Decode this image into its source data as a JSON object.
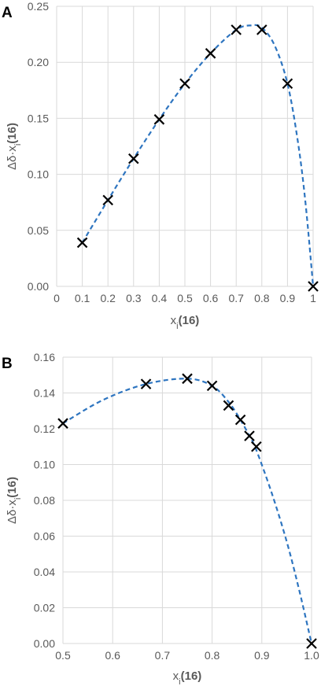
{
  "colors": {
    "fit_line": "#2e75c0",
    "marker": "#000000",
    "grid": "#d9d9d9",
    "text": "#595959"
  },
  "chart_data": [
    {
      "panel": "A",
      "type": "scatter",
      "marker": "x",
      "trendline": "dashed smooth fit",
      "xlabel": {
        "main": "x",
        "sub": "i",
        "compound": "(16)"
      },
      "ylabel": {
        "main": "Δδ·x",
        "sub": "i",
        "compound": "(16)"
      },
      "xlim": [
        0,
        1
      ],
      "ylim": [
        0,
        0.25
      ],
      "xticks": [
        0,
        0.1,
        0.2,
        0.3,
        0.4,
        0.5,
        0.6,
        0.7,
        0.8,
        0.9,
        1
      ],
      "xtick_labels": [
        "0",
        "0.1",
        "0.2",
        "0.3",
        "0.4",
        "0.5",
        "0.6",
        "0.7",
        "0.8",
        "0.9",
        "1"
      ],
      "yticks": [
        0,
        0.05,
        0.1,
        0.15,
        0.2,
        0.25
      ],
      "ytick_labels": [
        "0.00",
        "0.05",
        "0.10",
        "0.15",
        "0.20",
        "0.25"
      ],
      "grid": "vertical and horizontal",
      "points": [
        {
          "x": 0.1,
          "y": 0.039
        },
        {
          "x": 0.2,
          "y": 0.077
        },
        {
          "x": 0.3,
          "y": 0.114
        },
        {
          "x": 0.4,
          "y": 0.149
        },
        {
          "x": 0.5,
          "y": 0.181
        },
        {
          "x": 0.6,
          "y": 0.208
        },
        {
          "x": 0.7,
          "y": 0.229
        },
        {
          "x": 0.8,
          "y": 0.229
        },
        {
          "x": 0.9,
          "y": 0.181
        },
        {
          "x": 1.0,
          "y": 0.0
        }
      ],
      "fit": [
        {
          "x": 0.1,
          "y": 0.039
        },
        {
          "x": 0.2,
          "y": 0.077
        },
        {
          "x": 0.3,
          "y": 0.114
        },
        {
          "x": 0.4,
          "y": 0.149
        },
        {
          "x": 0.5,
          "y": 0.181
        },
        {
          "x": 0.6,
          "y": 0.208
        },
        {
          "x": 0.7,
          "y": 0.229
        },
        {
          "x": 0.76,
          "y": 0.233
        },
        {
          "x": 0.8,
          "y": 0.231
        },
        {
          "x": 0.85,
          "y": 0.215
        },
        {
          "x": 0.9,
          "y": 0.181
        },
        {
          "x": 0.94,
          "y": 0.13
        },
        {
          "x": 0.97,
          "y": 0.075
        },
        {
          "x": 1.0,
          "y": 0.0
        }
      ]
    },
    {
      "panel": "B",
      "type": "scatter",
      "marker": "x",
      "trendline": "dashed smooth fit",
      "xlabel": {
        "main": "x",
        "sub": "i",
        "compound": "(16)"
      },
      "ylabel": {
        "main": "Δδ·x",
        "sub": "i",
        "compound": "(16)"
      },
      "xlim": [
        0.5,
        1.0
      ],
      "ylim": [
        0,
        0.16
      ],
      "xticks": [
        0.5,
        0.6,
        0.7,
        0.8,
        0.9,
        1.0
      ],
      "xtick_labels": [
        "0.5",
        "0.6",
        "0.7",
        "0.8",
        "0.9",
        "1.0"
      ],
      "yticks": [
        0,
        0.02,
        0.04,
        0.06,
        0.08,
        0.1,
        0.12,
        0.14,
        0.16
      ],
      "ytick_labels": [
        "0.00",
        "0.02",
        "0.04",
        "0.06",
        "0.08",
        "0.10",
        "0.12",
        "0.14",
        "0.16"
      ],
      "grid": "vertical and horizontal",
      "points": [
        {
          "x": 0.5,
          "y": 0.123
        },
        {
          "x": 0.667,
          "y": 0.145
        },
        {
          "x": 0.75,
          "y": 0.148
        },
        {
          "x": 0.8,
          "y": 0.144
        },
        {
          "x": 0.833,
          "y": 0.133
        },
        {
          "x": 0.857,
          "y": 0.125
        },
        {
          "x": 0.875,
          "y": 0.116
        },
        {
          "x": 0.889,
          "y": 0.11
        },
        {
          "x": 1.0,
          "y": 0.0
        }
      ],
      "fit": [
        {
          "x": 0.5,
          "y": 0.123
        },
        {
          "x": 0.58,
          "y": 0.136
        },
        {
          "x": 0.667,
          "y": 0.145
        },
        {
          "x": 0.75,
          "y": 0.148
        },
        {
          "x": 0.8,
          "y": 0.144
        },
        {
          "x": 0.833,
          "y": 0.135
        },
        {
          "x": 0.857,
          "y": 0.125
        },
        {
          "x": 0.875,
          "y": 0.116
        },
        {
          "x": 0.889,
          "y": 0.108
        },
        {
          "x": 0.92,
          "y": 0.084
        },
        {
          "x": 0.95,
          "y": 0.057
        },
        {
          "x": 0.975,
          "y": 0.03
        },
        {
          "x": 1.0,
          "y": 0.0
        }
      ]
    }
  ]
}
